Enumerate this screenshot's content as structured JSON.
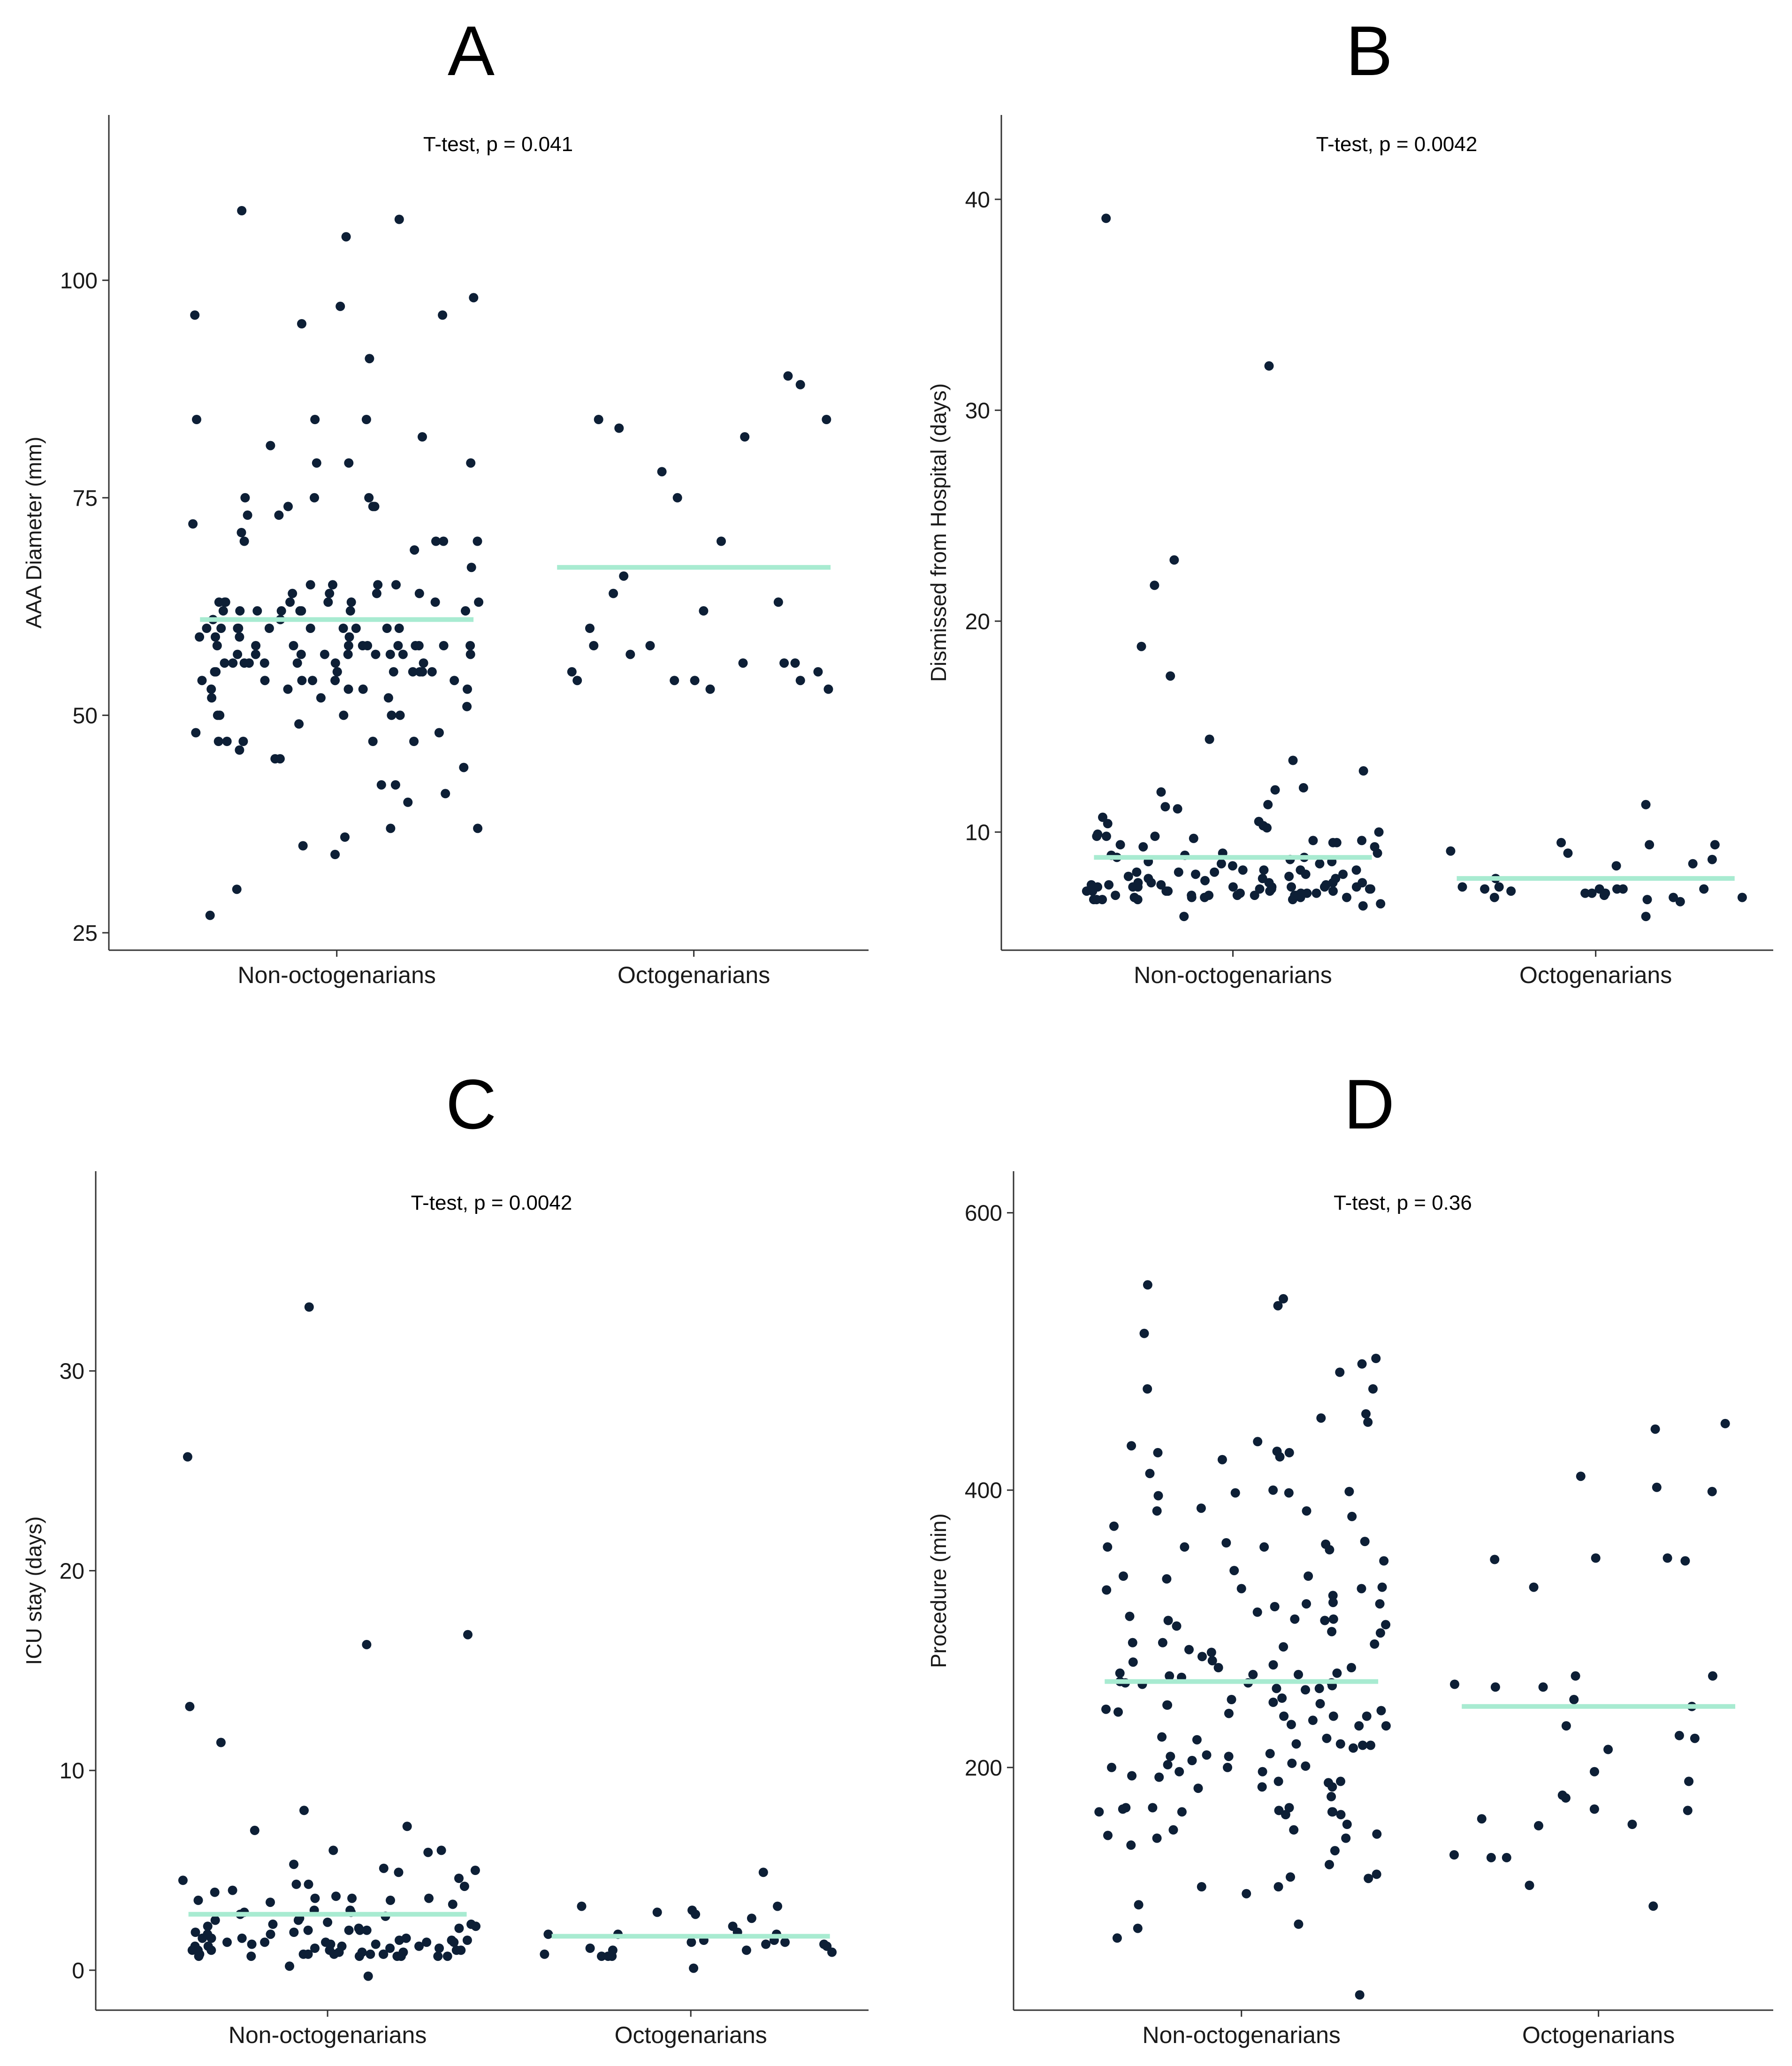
{
  "figure_colors": {
    "point": "#0d1f36",
    "mean_line": "#a8ebd1",
    "axis": "#333333"
  },
  "chart_data": [
    {
      "panel": "A",
      "type": "scatter",
      "title": "",
      "annotation": "T-test, p = 0.041",
      "ylabel": "AAA Diameter (mm)",
      "xlabel": "",
      "categories": [
        "Non-octogenarians",
        "Octogenarians"
      ],
      "ylim": [
        23,
        119
      ],
      "yticks": [
        25,
        50,
        75,
        100
      ],
      "means": [
        61,
        67
      ],
      "series": [
        {
          "name": "Non-octogenarians",
          "values": [
            47,
            37,
            36,
            37,
            48,
            53,
            54,
            55,
            58,
            59,
            60,
            63,
            64,
            65,
            74,
            75,
            96,
            97,
            98,
            84,
            91,
            49,
            57,
            58,
            60,
            61,
            62,
            50,
            45,
            52,
            53,
            56,
            57,
            58,
            56,
            62,
            70,
            71,
            75,
            55,
            57,
            107,
            47,
            35,
            96,
            81,
            59,
            62,
            60,
            58,
            57,
            63,
            63,
            55,
            58,
            55,
            53,
            48,
            62,
            64,
            60,
            59,
            58,
            56,
            52,
            50,
            70,
            47,
            42,
            44,
            34,
            51,
            42,
            74,
            84,
            72,
            73,
            55,
            55,
            54,
            67,
            54,
            57,
            95,
            82,
            63,
            60,
            60,
            58,
            53,
            41,
            62,
            65,
            47,
            54,
            105,
            56,
            69,
            58,
            57,
            62,
            84,
            61,
            58,
            58,
            57,
            55,
            53,
            54,
            64,
            63,
            62,
            60,
            52,
            46,
            50,
            75,
            74,
            70,
            63,
            65,
            27,
            62,
            57,
            79,
            64,
            60,
            56,
            40,
            63,
            45,
            30,
            65,
            79,
            50,
            50,
            55,
            70,
            56,
            73,
            63,
            60,
            59,
            56,
            55,
            60,
            58,
            56,
            54,
            108,
            79,
            47,
            57
          ]
        },
        {
          "name": "Octogenarians",
          "values": [
            82,
            88,
            64,
            62,
            58,
            57,
            56,
            56,
            54,
            53,
            53,
            66,
            75,
            78,
            83,
            56,
            55,
            54,
            55,
            70,
            60,
            54,
            54,
            58,
            63,
            84,
            89,
            84
          ]
        }
      ]
    },
    {
      "panel": "B",
      "type": "scatter",
      "title": "",
      "annotation": "T-test, p = 0.0042",
      "ylabel": "Dismissed from Hospital (days)",
      "xlabel": "",
      "categories": [
        "Non-octogenarians",
        "Octogenarians"
      ],
      "ylim": [
        4.4,
        44
      ],
      "yticks": [
        10,
        20,
        30,
        40
      ],
      "means": [
        8.8,
        7.8
      ],
      "series": [
        {
          "name": "Non-octogenarians",
          "values": [
            7.3,
            7.1,
            6.9,
            11.1,
            7.6,
            7.4,
            7.0,
            9.7,
            8.0,
            7.2,
            21.7,
            18.8,
            7.5,
            6.9,
            7.8,
            8.2,
            9.0,
            9.6,
            9.9,
            7.4,
            7.0,
            6.5,
            7.2,
            8.1,
            7.7,
            10.5,
            8.4,
            8.2,
            9.8,
            12.9,
            7.6,
            7.1,
            6.8,
            10.4,
            9.4,
            10.7,
            8.0,
            7.9,
            7.4,
            7.0,
            6.8,
            9.5,
            8.7,
            7.8,
            7.2,
            11.9,
            8.6,
            10.0,
            7.6,
            7.2,
            6.9,
            10.3,
            9.3,
            8.0,
            7.5,
            7.1,
            6.6,
            10.2,
            8.8,
            8.2,
            7.4,
            9.8,
            13.4,
            8.1,
            7.3,
            7.0,
            6.0,
            7.5,
            9.5,
            8.9,
            7.3,
            6.8,
            12.0,
            9.6,
            8.8,
            7.4,
            7.0,
            6.8,
            7.3,
            9.3,
            8.2,
            7.6,
            6.9,
            39.1,
            7.0,
            7.2,
            7.8,
            8.5,
            7.4,
            6.8,
            32.1,
            7.9,
            7.1,
            11.3,
            8.5,
            7.6,
            6.9,
            12.1,
            9.0,
            7.4,
            7.0,
            7.5,
            17.4,
            8.1,
            7.2,
            14.4,
            11.2,
            9.8,
            8.6,
            7.4,
            22.9,
            8.9
          ]
        },
        {
          "name": "Octogenarians",
          "values": [
            9.4,
            9.0,
            7.3,
            7.8,
            7.1,
            6.9,
            7.4,
            9.5,
            7.3,
            7.1,
            6.8,
            9.4,
            7.4,
            7.3,
            7.3,
            7.3,
            7.0,
            6.9,
            6.9,
            11.3,
            8.7,
            6.0,
            8.5,
            8.4,
            6.7,
            7.1,
            9.1,
            7.2
          ]
        }
      ]
    },
    {
      "panel": "C",
      "type": "scatter",
      "title": "",
      "annotation": "T-test, p = 0.0042",
      "ylabel": "ICU stay (days)",
      "xlabel": "",
      "categories": [
        "Non-octogenarians",
        "Octogenarians"
      ],
      "ylim": [
        -2,
        40
      ],
      "yticks": [
        0,
        10,
        20,
        30
      ],
      "means": [
        2.8,
        1.7
      ],
      "series": [
        {
          "name": "Non-octogenarians",
          "values": [
            -0.3,
            0.7,
            1.2,
            2.1,
            1.3,
            0.9,
            13.2,
            4.6,
            6.0,
            2.3,
            1.0,
            1.4,
            0.8,
            3.5,
            2.2,
            1.1,
            0.8,
            25.7,
            3.9,
            3.0,
            1.6,
            1.0,
            8.0,
            4.3,
            2.5,
            1.2,
            0.8,
            7.2,
            3.6,
            2.0,
            1.4,
            0.8,
            4.3,
            1.9,
            1.1,
            0.7,
            3.4,
            2.5,
            1.5,
            1.0,
            16.3,
            4.2,
            2.8,
            1.8,
            1.2,
            0.7,
            3.6,
            2.1,
            1.4,
            0.8,
            5.0,
            2.9,
            1.9,
            1.3,
            0.7,
            4.9,
            2.6,
            1.6,
            1.0,
            2.0,
            1.4,
            0.9,
            2.7,
            1.6,
            1.0,
            0.7,
            5.1,
            3.3,
            2.2,
            1.5,
            0.8,
            3.6,
            2.0,
            1.3,
            0.9,
            7.0,
            4.5,
            2.9,
            1.8,
            1.2,
            0.7,
            4.0,
            2.4,
            1.6,
            1.0,
            5.9,
            3.7,
            2.3,
            1.4,
            0.8,
            0.2,
            33.2,
            16.8,
            11.4,
            6.0,
            3.5,
            2.0,
            1.1,
            5.3,
            3.0,
            1.5,
            0.7
          ]
        },
        {
          "name": "Octogenarians",
          "values": [
            1.0,
            1.3,
            3.0,
            3.2,
            1.4,
            2.6,
            1.4,
            1.2,
            1.1,
            0.1,
            2.9,
            1.5,
            1.9,
            1.3,
            0.8,
            2.8,
            3.2,
            1.8,
            0.7,
            4.9,
            2.2,
            1.0,
            0.7,
            1.8,
            1.5,
            0.9,
            0.7,
            1.8
          ]
        }
      ]
    },
    {
      "panel": "D",
      "type": "scatter",
      "title": "",
      "annotation": "T-test, p = 0.36",
      "ylabel": "Procedure (min)",
      "xlabel": "",
      "categories": [
        "Non-octogenarians",
        "Octogenarians"
      ],
      "ylim": [
        25,
        630
      ],
      "yticks": [
        200,
        400,
        600
      ],
      "means": [
        262,
        244
      ],
      "series": [
        {
          "name": "Non-octogenarians",
          "values": [
            538,
            400,
            362,
            197,
            166,
            249,
            114,
            109,
            513,
            495,
            398,
            342,
            265,
            245,
            241,
            209,
            203,
            197,
            171,
            166,
            149,
            77,
            307,
            316,
            283,
            274,
            272,
            261,
            247,
            237,
            216,
            200,
            168,
            87,
            424,
            422,
            399,
            338,
            336,
            312,
            268,
            262,
            256,
            246,
            237,
            222,
            205,
            193,
            185,
            171,
            155,
            485,
            491,
            473,
            385,
            338,
            319,
            298,
            290,
            267,
            260,
            242,
            217,
            201,
            190,
            170,
            151,
            140,
            101,
            84,
            36,
            427,
            428,
            435,
            432,
            381,
            363,
            309,
            290,
            276,
            268,
            261,
            250,
            239,
            231,
            217,
            208,
            190,
            179,
            168,
            144,
            412,
            396,
            427,
            359,
            357,
            324,
            307,
            306,
            303,
            285,
            277,
            266,
            245,
            234,
            220,
            202,
            186,
            168,
            159,
            121,
            449,
            455,
            374,
            359,
            329,
            329,
            318,
            306,
            289,
            267,
            257,
            237,
            230,
            216,
            200,
            189,
            169,
            130,
            398,
            361,
            349,
            330,
            328,
            302,
            272,
            257,
            240,
            221,
            214,
            194,
            168,
            149,
            123,
            548,
            533,
            473,
            387,
            385,
            297,
            280,
            261,
            230,
            208,
            186,
            171,
            152,
            120,
            452,
            359,
            318,
            287,
            259,
            210,
            155,
            114
          ]
        },
        {
          "name": "Octogenarians",
          "values": [
            444,
            351,
            350,
            266,
            258,
            249,
            221,
            213,
            190,
            170,
            163,
            135,
            115,
            448,
            399,
            410,
            351,
            330,
            258,
            244,
            230,
            169,
            159,
            260,
            223,
            197,
            178,
            158,
            402,
            349,
            266,
            180,
            137,
            135,
            100
          ]
        }
      ]
    }
  ]
}
